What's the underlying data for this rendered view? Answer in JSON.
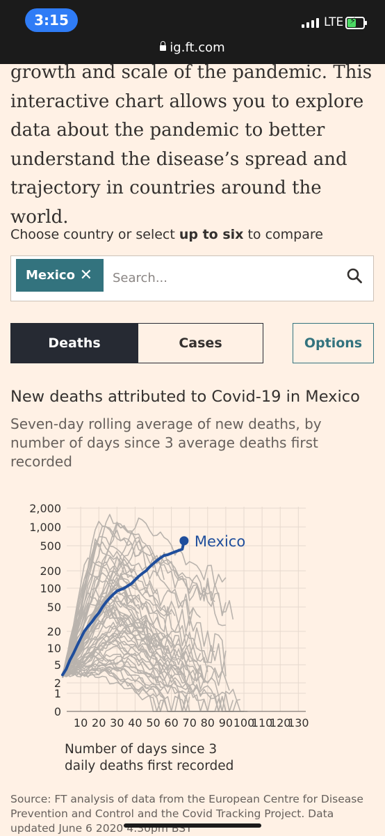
{
  "status": {
    "time": "3:15",
    "network": "LTE",
    "url": "ig.ft.com"
  },
  "intro_text": "growth and scale of the pandemic. This interactive chart allows you to explore data about the pandemic to better understand the disease’s spread and trajectory in countries around the world.",
  "picker": {
    "prefix": "Choose country or select ",
    "bold": "up to six",
    "suffix": " to compare",
    "chip_label": "Mexico",
    "chip_remove": "✕",
    "placeholder": "Search..."
  },
  "tabs": {
    "deaths": "Deaths",
    "cases": "Cases",
    "options": "Options"
  },
  "chart": {
    "title": "New deaths attributed to Covid-19 in Mexico",
    "subtitle": "Seven-day rolling average of new deaths, by number of days since 3 average deaths first recorded",
    "xlabel_line1": "Number of days since 3",
    "xlabel_line2": "daily deaths first recorded",
    "source": "Source: FT analysis of data from the European Centre for Disease Prevention and Control and the Covid Tracking Project. Data updated June 6 2020 4:30pm BST"
  },
  "chart_data": {
    "type": "line",
    "y_scale": "log (with 0 baseline)",
    "y_ticks": [
      "2,000",
      "1,000",
      "500",
      "200",
      "100",
      "50",
      "20",
      "10",
      "5",
      "2",
      "1",
      "0"
    ],
    "x_ticks": [
      "10",
      "20",
      "30",
      "40",
      "50",
      "60",
      "70",
      "80",
      "90",
      "100",
      "110",
      "120",
      "130"
    ],
    "highlight_color": "#1f4e9c",
    "background_series_color": "#b9b3ad",
    "series": [
      {
        "name": "Mexico",
        "x": [
          0,
          2,
          4,
          6,
          8,
          10,
          12,
          14,
          16,
          18,
          20,
          22,
          24,
          26,
          28,
          30,
          32,
          34,
          36,
          38,
          40,
          42,
          44,
          46,
          48,
          50,
          52,
          54,
          56,
          58,
          60,
          62,
          64,
          66,
          67
        ],
        "y": [
          3,
          4,
          6,
          8,
          11,
          15,
          20,
          24,
          28,
          34,
          40,
          50,
          60,
          70,
          80,
          90,
          95,
          100,
          110,
          120,
          140,
          160,
          180,
          200,
          230,
          260,
          290,
          320,
          350,
          360,
          380,
          400,
          420,
          440,
          600
        ]
      }
    ]
  }
}
